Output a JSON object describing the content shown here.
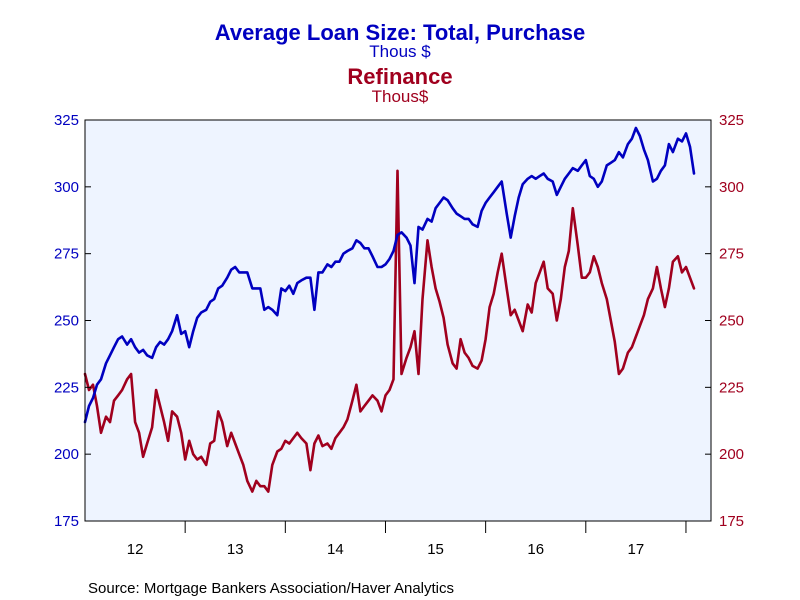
{
  "chart_data": {
    "type": "line",
    "title": "Average Loan Size: Total, Purchase",
    "title_unit": "Thous $",
    "subtitle": "Refinance",
    "subtitle_unit": "Thous$",
    "source": "Source:  Mortgage Bankers Association/Haver Analytics",
    "x_range": [
      2011.5,
      2017.75
    ],
    "x_tick_labels": [
      {
        "label": "12",
        "pos": 2012.0
      },
      {
        "label": "13",
        "pos": 2013.0
      },
      {
        "label": "14",
        "pos": 2014.0
      },
      {
        "label": "15",
        "pos": 2015.0
      },
      {
        "label": "16",
        "pos": 2016.0
      },
      {
        "label": "17",
        "pos": 2017.0
      }
    ],
    "x_dividers": [
      2012.5,
      2013.5,
      2014.5,
      2015.5,
      2016.5,
      2017.5
    ],
    "y_left": {
      "range": [
        175,
        325
      ],
      "ticks": [
        175,
        200,
        225,
        250,
        275,
        300,
        325
      ]
    },
    "y_right": {
      "range": [
        175,
        325
      ],
      "ticks": [
        175,
        200,
        225,
        250,
        275,
        300,
        325
      ]
    },
    "grid": false,
    "colors": {
      "series1": "#0000c0",
      "series2": "#a0001e",
      "plot_bg": "#eef4ff"
    },
    "series": [
      {
        "name": "Total, Purchase",
        "color": "#0000c0",
        "axis": "left",
        "points": [
          [
            2011.5,
            212
          ],
          [
            2011.54,
            218
          ],
          [
            2011.58,
            221
          ],
          [
            2011.62,
            226
          ],
          [
            2011.66,
            228
          ],
          [
            2011.71,
            234
          ],
          [
            2011.75,
            237
          ],
          [
            2011.79,
            240
          ],
          [
            2011.83,
            243
          ],
          [
            2011.87,
            244
          ],
          [
            2011.92,
            241
          ],
          [
            2011.96,
            243
          ],
          [
            2012.0,
            240
          ],
          [
            2012.04,
            238
          ],
          [
            2012.08,
            239
          ],
          [
            2012.12,
            237
          ],
          [
            2012.17,
            236
          ],
          [
            2012.21,
            240
          ],
          [
            2012.25,
            242
          ],
          [
            2012.29,
            241
          ],
          [
            2012.33,
            243
          ],
          [
            2012.37,
            246
          ],
          [
            2012.42,
            252
          ],
          [
            2012.46,
            245
          ],
          [
            2012.5,
            246
          ],
          [
            2012.54,
            240
          ],
          [
            2012.58,
            246
          ],
          [
            2012.62,
            251
          ],
          [
            2012.66,
            253
          ],
          [
            2012.71,
            254
          ],
          [
            2012.75,
            257
          ],
          [
            2012.79,
            258
          ],
          [
            2012.83,
            262
          ],
          [
            2012.87,
            263
          ],
          [
            2012.92,
            266
          ],
          [
            2012.96,
            269
          ],
          [
            2013.0,
            270
          ],
          [
            2013.04,
            268
          ],
          [
            2013.08,
            268
          ],
          [
            2013.12,
            268
          ],
          [
            2013.17,
            262
          ],
          [
            2013.21,
            262
          ],
          [
            2013.25,
            262
          ],
          [
            2013.29,
            254
          ],
          [
            2013.33,
            255
          ],
          [
            2013.37,
            254
          ],
          [
            2013.42,
            252
          ],
          [
            2013.46,
            262
          ],
          [
            2013.5,
            261
          ],
          [
            2013.54,
            263
          ],
          [
            2013.58,
            260
          ],
          [
            2013.62,
            264
          ],
          [
            2013.66,
            265
          ],
          [
            2013.71,
            266
          ],
          [
            2013.75,
            266
          ],
          [
            2013.79,
            254
          ],
          [
            2013.83,
            268
          ],
          [
            2013.87,
            268
          ],
          [
            2013.92,
            271
          ],
          [
            2013.96,
            270
          ],
          [
            2014.0,
            272
          ],
          [
            2014.04,
            272
          ],
          [
            2014.08,
            275
          ],
          [
            2014.12,
            276
          ],
          [
            2014.17,
            277
          ],
          [
            2014.21,
            280
          ],
          [
            2014.25,
            279
          ],
          [
            2014.29,
            277
          ],
          [
            2014.33,
            277
          ],
          [
            2014.37,
            274
          ],
          [
            2014.42,
            270
          ],
          [
            2014.46,
            270
          ],
          [
            2014.5,
            271
          ],
          [
            2014.54,
            273
          ],
          [
            2014.58,
            276
          ],
          [
            2014.62,
            282
          ],
          [
            2014.66,
            283
          ],
          [
            2014.71,
            281
          ],
          [
            2014.75,
            278
          ],
          [
            2014.79,
            264
          ],
          [
            2014.83,
            285
          ],
          [
            2014.87,
            284
          ],
          [
            2014.92,
            288
          ],
          [
            2014.96,
            287
          ],
          [
            2015.0,
            292
          ],
          [
            2015.04,
            294
          ],
          [
            2015.08,
            296
          ],
          [
            2015.12,
            295
          ],
          [
            2015.17,
            292
          ],
          [
            2015.21,
            290
          ],
          [
            2015.25,
            289
          ],
          [
            2015.29,
            288
          ],
          [
            2015.33,
            288
          ],
          [
            2015.37,
            286
          ],
          [
            2015.42,
            285
          ],
          [
            2015.46,
            291
          ],
          [
            2015.5,
            294
          ],
          [
            2015.54,
            296
          ],
          [
            2015.58,
            298
          ],
          [
            2015.62,
            300
          ],
          [
            2015.66,
            302
          ],
          [
            2015.71,
            290
          ],
          [
            2015.75,
            281
          ],
          [
            2015.79,
            289
          ],
          [
            2015.83,
            296
          ],
          [
            2015.87,
            301
          ],
          [
            2015.92,
            303
          ],
          [
            2015.96,
            304
          ],
          [
            2016.0,
            303
          ],
          [
            2016.04,
            304
          ],
          [
            2016.08,
            305
          ],
          [
            2016.12,
            303
          ],
          [
            2016.17,
            302
          ],
          [
            2016.21,
            297
          ],
          [
            2016.25,
            300
          ],
          [
            2016.29,
            303
          ],
          [
            2016.33,
            305
          ],
          [
            2016.37,
            307
          ],
          [
            2016.42,
            306
          ],
          [
            2016.46,
            308
          ],
          [
            2016.5,
            310
          ],
          [
            2016.54,
            304
          ],
          [
            2016.58,
            303
          ],
          [
            2016.62,
            300
          ],
          [
            2016.66,
            302
          ],
          [
            2016.71,
            308
          ],
          [
            2016.75,
            309
          ],
          [
            2016.79,
            310
          ],
          [
            2016.83,
            313
          ],
          [
            2016.87,
            311
          ],
          [
            2016.92,
            316
          ],
          [
            2016.96,
            318
          ],
          [
            2017.0,
            322
          ],
          [
            2017.04,
            319
          ],
          [
            2017.08,
            314
          ],
          [
            2017.12,
            310
          ],
          [
            2017.17,
            302
          ],
          [
            2017.21,
            303
          ],
          [
            2017.25,
            306
          ],
          [
            2017.29,
            308
          ],
          [
            2017.33,
            316
          ],
          [
            2017.37,
            313
          ],
          [
            2017.42,
            318
          ],
          [
            2017.46,
            317
          ],
          [
            2017.5,
            320
          ],
          [
            2017.54,
            315
          ],
          [
            2017.58,
            305
          ]
        ]
      },
      {
        "name": "Refinance",
        "color": "#a0001e",
        "axis": "right",
        "points": [
          [
            2011.5,
            230
          ],
          [
            2011.54,
            224
          ],
          [
            2011.58,
            226
          ],
          [
            2011.62,
            218
          ],
          [
            2011.66,
            208
          ],
          [
            2011.71,
            214
          ],
          [
            2011.75,
            212
          ],
          [
            2011.79,
            220
          ],
          [
            2011.83,
            222
          ],
          [
            2011.87,
            224
          ],
          [
            2011.92,
            228
          ],
          [
            2011.96,
            230
          ],
          [
            2012.0,
            212
          ],
          [
            2012.04,
            208
          ],
          [
            2012.08,
            199
          ],
          [
            2012.12,
            204
          ],
          [
            2012.17,
            210
          ],
          [
            2012.21,
            224
          ],
          [
            2012.25,
            218
          ],
          [
            2012.29,
            212
          ],
          [
            2012.33,
            205
          ],
          [
            2012.37,
            216
          ],
          [
            2012.42,
            214
          ],
          [
            2012.46,
            208
          ],
          [
            2012.5,
            198
          ],
          [
            2012.54,
            205
          ],
          [
            2012.58,
            200
          ],
          [
            2012.62,
            198
          ],
          [
            2012.66,
            199
          ],
          [
            2012.71,
            196
          ],
          [
            2012.75,
            204
          ],
          [
            2012.79,
            205
          ],
          [
            2012.83,
            216
          ],
          [
            2012.87,
            212
          ],
          [
            2012.92,
            203
          ],
          [
            2012.96,
            208
          ],
          [
            2013.0,
            204
          ],
          [
            2013.04,
            200
          ],
          [
            2013.08,
            196
          ],
          [
            2013.12,
            190
          ],
          [
            2013.17,
            186
          ],
          [
            2013.21,
            190
          ],
          [
            2013.25,
            188
          ],
          [
            2013.29,
            188
          ],
          [
            2013.33,
            186
          ],
          [
            2013.37,
            196
          ],
          [
            2013.42,
            201
          ],
          [
            2013.46,
            202
          ],
          [
            2013.5,
            205
          ],
          [
            2013.54,
            204
          ],
          [
            2013.58,
            206
          ],
          [
            2013.62,
            208
          ],
          [
            2013.66,
            206
          ],
          [
            2013.71,
            204
          ],
          [
            2013.75,
            194
          ],
          [
            2013.79,
            204
          ],
          [
            2013.83,
            207
          ],
          [
            2013.87,
            203
          ],
          [
            2013.92,
            204
          ],
          [
            2013.96,
            202
          ],
          [
            2014.0,
            206
          ],
          [
            2014.04,
            208
          ],
          [
            2014.08,
            210
          ],
          [
            2014.12,
            213
          ],
          [
            2014.17,
            220
          ],
          [
            2014.21,
            226
          ],
          [
            2014.25,
            216
          ],
          [
            2014.29,
            218
          ],
          [
            2014.33,
            220
          ],
          [
            2014.37,
            222
          ],
          [
            2014.42,
            220
          ],
          [
            2014.46,
            216
          ],
          [
            2014.5,
            222
          ],
          [
            2014.54,
            224
          ],
          [
            2014.58,
            228
          ],
          [
            2014.62,
            306
          ],
          [
            2014.66,
            230
          ],
          [
            2014.71,
            236
          ],
          [
            2014.75,
            240
          ],
          [
            2014.79,
            246
          ],
          [
            2014.83,
            230
          ],
          [
            2014.87,
            258
          ],
          [
            2014.92,
            280
          ],
          [
            2014.96,
            270
          ],
          [
            2015.0,
            262
          ],
          [
            2015.04,
            257
          ],
          [
            2015.08,
            251
          ],
          [
            2015.12,
            241
          ],
          [
            2015.17,
            234
          ],
          [
            2015.21,
            232
          ],
          [
            2015.25,
            243
          ],
          [
            2015.29,
            238
          ],
          [
            2015.33,
            236
          ],
          [
            2015.37,
            233
          ],
          [
            2015.42,
            232
          ],
          [
            2015.46,
            235
          ],
          [
            2015.5,
            243
          ],
          [
            2015.54,
            255
          ],
          [
            2015.58,
            260
          ],
          [
            2015.62,
            268
          ],
          [
            2015.66,
            275
          ],
          [
            2015.71,
            262
          ],
          [
            2015.75,
            252
          ],
          [
            2015.79,
            254
          ],
          [
            2015.83,
            250
          ],
          [
            2015.87,
            246
          ],
          [
            2015.92,
            256
          ],
          [
            2015.96,
            253
          ],
          [
            2016.0,
            264
          ],
          [
            2016.04,
            268
          ],
          [
            2016.08,
            272
          ],
          [
            2016.12,
            262
          ],
          [
            2016.17,
            260
          ],
          [
            2016.21,
            250
          ],
          [
            2016.25,
            258
          ],
          [
            2016.29,
            270
          ],
          [
            2016.33,
            276
          ],
          [
            2016.37,
            292
          ],
          [
            2016.42,
            278
          ],
          [
            2016.46,
            266
          ],
          [
            2016.5,
            266
          ],
          [
            2016.54,
            268
          ],
          [
            2016.58,
            274
          ],
          [
            2016.62,
            270
          ],
          [
            2016.66,
            264
          ],
          [
            2016.71,
            258
          ],
          [
            2016.75,
            250
          ],
          [
            2016.79,
            242
          ],
          [
            2016.83,
            230
          ],
          [
            2016.87,
            232
          ],
          [
            2016.92,
            238
          ],
          [
            2016.96,
            240
          ],
          [
            2017.0,
            244
          ],
          [
            2017.04,
            248
          ],
          [
            2017.08,
            252
          ],
          [
            2017.12,
            258
          ],
          [
            2017.17,
            262
          ],
          [
            2017.21,
            270
          ],
          [
            2017.25,
            262
          ],
          [
            2017.29,
            255
          ],
          [
            2017.33,
            262
          ],
          [
            2017.37,
            272
          ],
          [
            2017.42,
            274
          ],
          [
            2017.46,
            268
          ],
          [
            2017.5,
            270
          ],
          [
            2017.54,
            266
          ],
          [
            2017.58,
            262
          ]
        ]
      }
    ]
  }
}
